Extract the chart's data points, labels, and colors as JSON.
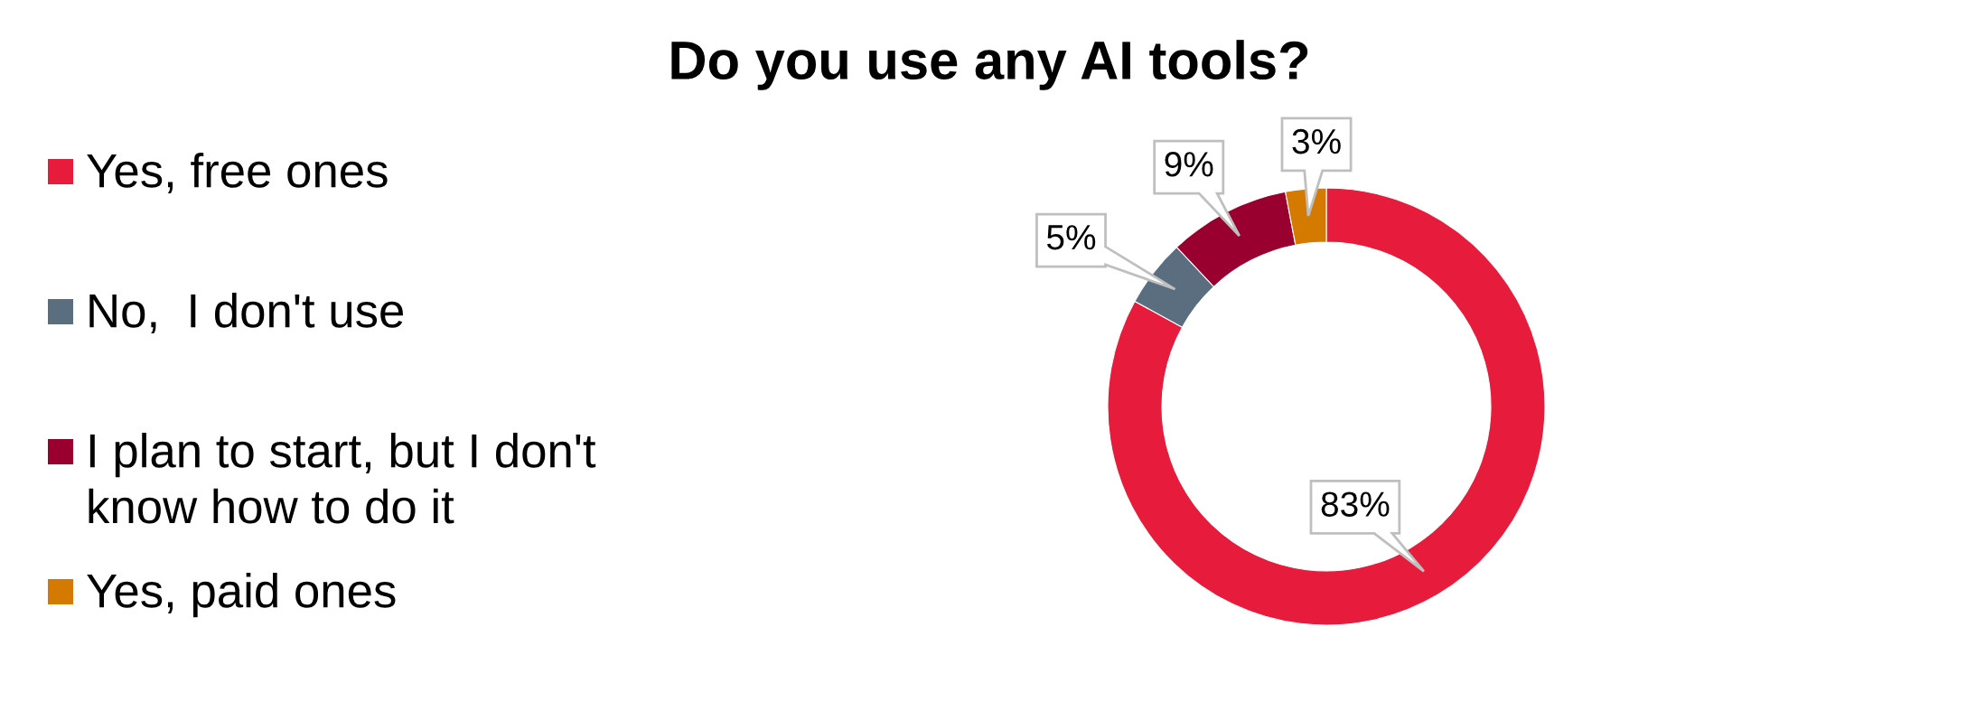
{
  "chart_data": {
    "type": "donut",
    "title": "Do you use any AI tools?",
    "categories": [
      "Yes, free ones",
      "No,  I don't use",
      "I plan to start, but I don't\nknow how to do it",
      "Yes, paid ones"
    ],
    "values": [
      83,
      5,
      9,
      3
    ],
    "colors": [
      "#e71b3c",
      "#5b6e80",
      "#990030",
      "#d57a00"
    ],
    "value_labels": [
      "83%",
      "5%",
      "9%",
      "3%"
    ],
    "legend": "left"
  }
}
